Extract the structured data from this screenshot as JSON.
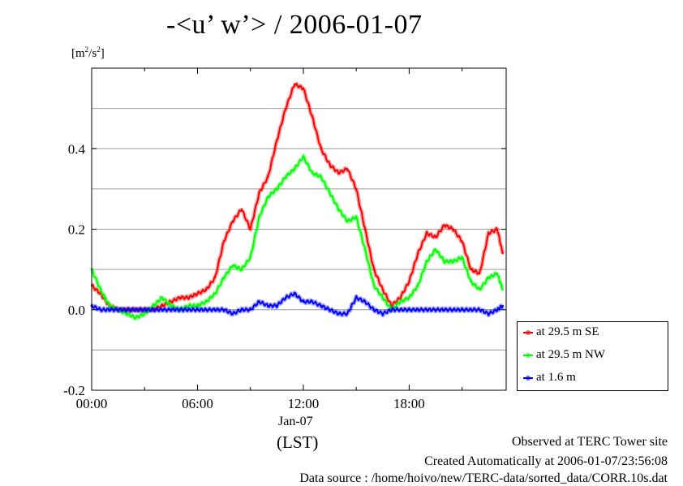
{
  "page": {
    "title": "-<u’ w’> / 2006-01-07",
    "unit_label": "[m",
    "unit_sup1": "2",
    "unit_mid": "/s",
    "unit_sup2": "2",
    "unit_close": "]",
    "x_date_label": "Jan-07",
    "x_tz_label": "(LST)",
    "footer_site": "Observed at TERC Tower site",
    "footer_created": "Created Automatically at 2006-01-07/23:56:08",
    "footer_source": "Data source : /home/hoivo/new/TERC-data/sorted_data/CORR.10s.dat"
  },
  "chart_data": {
    "type": "line",
    "title": "-<u’ w’> / 2006-01-07",
    "ylabel": "[m2/s2]",
    "xlabel": "(LST)",
    "xlim": [
      0,
      23.5
    ],
    "ylim": [
      -0.2,
      0.6
    ],
    "yticks": [
      -0.2,
      0.0,
      0.2,
      0.4
    ],
    "ytick_labels": [
      "-0.2",
      "0.0",
      "0.2",
      "0.4"
    ],
    "xticks": [
      0,
      6,
      12,
      18
    ],
    "xtick_labels": [
      "00:00",
      "06:00",
      "12:00",
      "18:00"
    ],
    "grid": true,
    "legend_position": "outside-right-bottom",
    "series": [
      {
        "name": "at 29.5 m SE",
        "color": "#ff0000",
        "x": [
          0,
          0.5,
          1,
          1.5,
          2,
          2.5,
          3,
          3.5,
          4,
          4.5,
          5,
          5.5,
          6,
          6.5,
          7,
          7.5,
          8,
          8.5,
          9,
          9.5,
          10,
          10.5,
          11,
          11.5,
          12,
          12.5,
          13,
          13.5,
          14,
          14.5,
          15,
          15.5,
          16,
          16.5,
          17,
          17.5,
          18,
          18.5,
          19,
          19.5,
          20,
          20.5,
          21,
          21.5,
          22,
          22.5,
          23,
          23.3
        ],
        "y": [
          0.06,
          0.04,
          0.01,
          0.0,
          0.0,
          0.0,
          0.0,
          0.0,
          0.01,
          0.02,
          0.03,
          0.03,
          0.04,
          0.05,
          0.08,
          0.17,
          0.22,
          0.25,
          0.2,
          0.29,
          0.33,
          0.42,
          0.5,
          0.56,
          0.55,
          0.48,
          0.4,
          0.36,
          0.34,
          0.35,
          0.3,
          0.2,
          0.1,
          0.05,
          0.01,
          0.03,
          0.07,
          0.14,
          0.19,
          0.18,
          0.21,
          0.2,
          0.17,
          0.1,
          0.09,
          0.19,
          0.2,
          0.14
        ]
      },
      {
        "name": "at 29.5 m NW",
        "color": "#00ff00",
        "x": [
          0,
          0.5,
          1,
          1.5,
          2,
          2.5,
          3,
          3.5,
          4,
          4.5,
          5,
          5.5,
          6,
          6.5,
          7,
          7.5,
          8,
          8.5,
          9,
          9.5,
          10,
          10.5,
          11,
          11.5,
          12,
          12.5,
          13,
          13.5,
          14,
          14.5,
          15,
          15.5,
          16,
          16.5,
          17,
          17.5,
          18,
          18.5,
          19,
          19.5,
          20,
          20.5,
          21,
          21.5,
          22,
          22.5,
          23,
          23.3
        ],
        "y": [
          0.1,
          0.05,
          0.01,
          0.0,
          -0.01,
          -0.02,
          -0.01,
          0.01,
          0.03,
          0.01,
          0.0,
          0.01,
          0.01,
          0.02,
          0.04,
          0.08,
          0.11,
          0.1,
          0.13,
          0.23,
          0.28,
          0.3,
          0.33,
          0.35,
          0.38,
          0.34,
          0.33,
          0.29,
          0.25,
          0.22,
          0.23,
          0.15,
          0.06,
          0.03,
          0.0,
          0.02,
          0.03,
          0.06,
          0.12,
          0.15,
          0.12,
          0.12,
          0.13,
          0.07,
          0.05,
          0.08,
          0.09,
          0.05
        ]
      },
      {
        "name": "at 1.6 m",
        "color": "#0000ff",
        "x": [
          0,
          0.5,
          1,
          1.5,
          2,
          2.5,
          3,
          3.5,
          4,
          4.5,
          5,
          5.5,
          6,
          6.5,
          7,
          7.5,
          8,
          8.5,
          9,
          9.5,
          10,
          10.5,
          11,
          11.5,
          12,
          12.5,
          13,
          13.5,
          14,
          14.5,
          15,
          15.5,
          16,
          16.5,
          17,
          17.5,
          18,
          18.5,
          19,
          19.5,
          20,
          20.5,
          21,
          21.5,
          22,
          22.5,
          23,
          23.3
        ],
        "y": [
          0.01,
          0.0,
          0.0,
          0.0,
          0.0,
          0.0,
          0.0,
          0.0,
          0.0,
          0.0,
          0.0,
          0.0,
          0.0,
          0.0,
          0.0,
          0.0,
          -0.01,
          0.0,
          0.0,
          0.02,
          0.01,
          0.01,
          0.03,
          0.04,
          0.02,
          0.02,
          0.01,
          0.0,
          -0.01,
          -0.01,
          0.03,
          0.02,
          0.0,
          -0.01,
          0.0,
          0.0,
          0.0,
          0.0,
          0.0,
          0.0,
          0.0,
          0.0,
          0.0,
          0.0,
          0.0,
          -0.01,
          0.0,
          0.01
        ]
      }
    ]
  }
}
